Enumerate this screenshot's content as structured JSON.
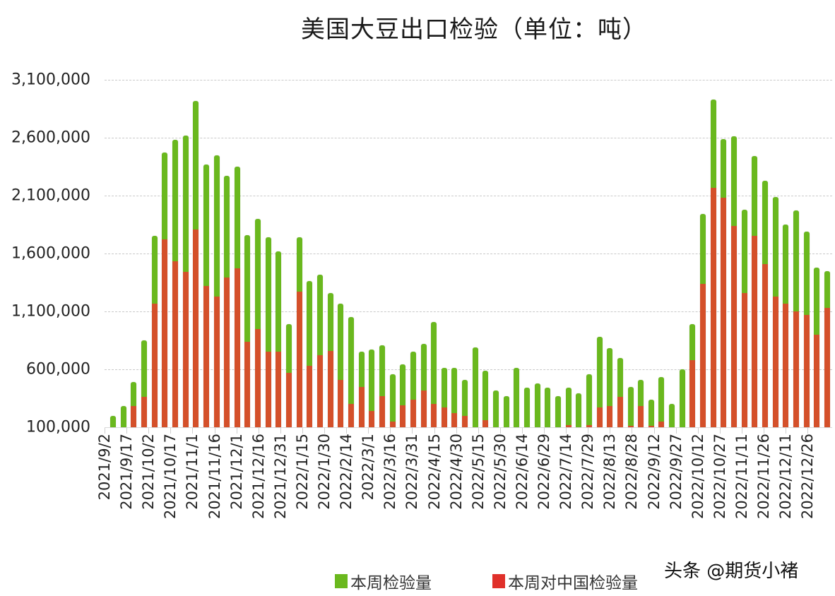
{
  "chart_data": {
    "type": "bar",
    "stacking": "overlay",
    "title": "美国大豆出口检验（单位：吨）",
    "xlabel": "",
    "ylabel": "",
    "ylim": [
      100000,
      3100000
    ],
    "yticks": [
      "3,100,000",
      "2,600,000",
      "2,100,000",
      "1,600,000",
      "1,100,000",
      "600,000",
      "100,000"
    ],
    "ytick_values": [
      3100000,
      2600000,
      2100000,
      1600000,
      1100000,
      600000,
      100000
    ],
    "grid": true,
    "legend_position": "bottom",
    "xtick_labels": [
      "2021/9/2",
      "2021/9/17",
      "2021/10/2",
      "2021/10/17",
      "2021/11/1",
      "2021/11/16",
      "2021/12/1",
      "2021/12/16",
      "2021/12/31",
      "2022/1/15",
      "2022/1/30",
      "2022/2/14",
      "2022/3/1",
      "2022/3/16",
      "2022/3/31",
      "2022/4/15",
      "2022/4/30",
      "2022/5/15",
      "2022/5/30",
      "2022/6/14",
      "2022/6/29",
      "2022/7/14",
      "2022/7/29",
      "2022/8/13",
      "2022/8/28",
      "2022/9/12",
      "2022/9/27",
      "2022/10/12",
      "2022/10/27",
      "2022/11/11",
      "2022/11/26",
      "2022/12/11",
      "2022/12/26"
    ],
    "series": [
      {
        "name": "本周检验量",
        "color": "#6ab81e",
        "values": [
          200000,
          280000,
          490000,
          850000,
          1750000,
          2470000,
          2580000,
          2620000,
          2920000,
          2370000,
          2450000,
          2270000,
          2350000,
          1760000,
          1900000,
          1740000,
          1620000,
          990000,
          1740000,
          1360000,
          1420000,
          1260000,
          1170000,
          1050000,
          750000,
          770000,
          810000,
          560000,
          640000,
          750000,
          820000,
          1010000,
          610000,
          610000,
          510000,
          790000,
          590000,
          420000,
          370000,
          610000,
          440000,
          480000,
          440000,
          370000,
          440000,
          390000,
          560000,
          880000,
          780000,
          700000,
          450000,
          510000,
          340000,
          530000,
          300000,
          600000,
          990000,
          1940000,
          2930000,
          2590000,
          2610000,
          1980000,
          2440000,
          2230000,
          2090000,
          1850000,
          1970000,
          1790000,
          1480000,
          1450000
        ]
      },
      {
        "name": "本周对中国检验量",
        "color": "#d4502a",
        "values": [
          0,
          0,
          280000,
          360000,
          1170000,
          1720000,
          1530000,
          1440000,
          1810000,
          1320000,
          1230000,
          1390000,
          1470000,
          840000,
          950000,
          750000,
          750000,
          570000,
          1270000,
          630000,
          720000,
          760000,
          510000,
          300000,
          450000,
          240000,
          370000,
          150000,
          290000,
          340000,
          420000,
          300000,
          270000,
          220000,
          200000,
          100000,
          160000,
          0,
          0,
          0,
          0,
          0,
          0,
          0,
          120000,
          0,
          120000,
          270000,
          280000,
          360000,
          110000,
          280000,
          110000,
          150000,
          0,
          0,
          680000,
          1340000,
          2170000,
          2080000,
          1840000,
          1260000,
          1750000,
          1510000,
          1230000,
          1170000,
          1100000,
          1070000,
          900000,
          1130000
        ]
      }
    ]
  },
  "title": "美国大豆出口检验（单位：吨）",
  "legend": [
    {
      "label": "本周检验量",
      "color": "#6ab81e"
    },
    {
      "label": "本周对中国检验量",
      "color": "#e0302a"
    }
  ],
  "watermark": "头条 @期货小褚"
}
